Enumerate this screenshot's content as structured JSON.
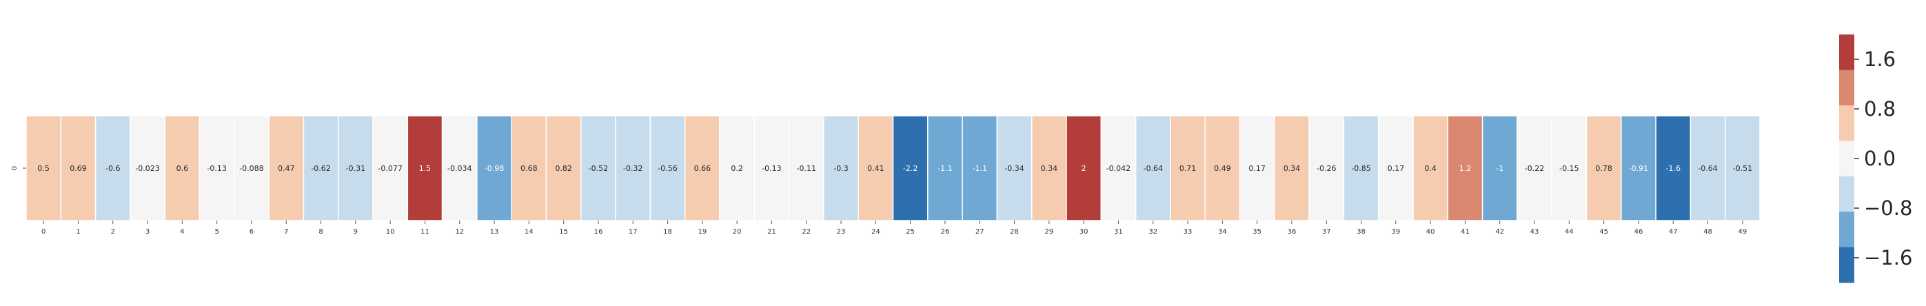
{
  "chart_data": {
    "type": "heatmap",
    "rows": [
      "0"
    ],
    "columns": [
      "0",
      "1",
      "2",
      "3",
      "4",
      "5",
      "6",
      "7",
      "8",
      "9",
      "10",
      "11",
      "12",
      "13",
      "14",
      "15",
      "16",
      "17",
      "18",
      "19",
      "20",
      "21",
      "22",
      "23",
      "24",
      "25",
      "26",
      "27",
      "28",
      "29",
      "30",
      "31",
      "32",
      "33",
      "34",
      "35",
      "36",
      "37",
      "38",
      "39",
      "40",
      "41",
      "42",
      "43",
      "44",
      "45",
      "46",
      "47",
      "48",
      "49"
    ],
    "values": [
      [
        0.5,
        0.69,
        -0.6,
        -0.023,
        0.6,
        -0.13,
        -0.088,
        0.47,
        -0.62,
        -0.31,
        -0.077,
        1.5,
        -0.034,
        -0.98,
        0.68,
        0.82,
        -0.52,
        -0.32,
        -0.56,
        0.66,
        0.2,
        -0.13,
        -0.11,
        -0.3,
        0.41,
        -2.2,
        -1.1,
        -1.1,
        -0.34,
        0.34,
        2,
        -0.042,
        -0.64,
        0.71,
        0.49,
        0.17,
        0.34,
        -0.26,
        -0.85,
        0.17,
        0.4,
        1.2,
        -1,
        -0.22,
        -0.15,
        0.78,
        -0.91,
        -1.6,
        -0.64,
        -0.51
      ]
    ],
    "annotations": [
      "0.5",
      "0.69",
      "-0.6",
      "-0.023",
      "0.6",
      "-0.13",
      "-0.088",
      "0.47",
      "-0.62",
      "-0.31",
      "-0.077",
      "1.5",
      "-0.034",
      "-0.98",
      "0.68",
      "0.82",
      "-0.52",
      "-0.32",
      "-0.56",
      "0.66",
      "0.2",
      "-0.13",
      "-0.11",
      "-0.3",
      "0.41",
      "-2.2",
      "-1.1",
      "-1.1",
      "-0.34",
      "0.34",
      "2",
      "-0.042",
      "-0.64",
      "0.71",
      "0.49",
      "0.17",
      "0.34",
      "-0.26",
      "-0.85",
      "0.17",
      "0.4",
      "1.2",
      "-1",
      "-0.22",
      "-0.15",
      "0.78",
      "-0.91",
      "-1.6",
      "-0.64",
      "-0.51"
    ],
    "colormap": "RdBu_r, 6 discrete levels",
    "colors": [
      "#2e6fb0",
      "#6fa8d3",
      "#c6dced",
      "#f5f5f5",
      "#f6ccb0",
      "#db8870",
      "#b23d3a"
    ],
    "vmin": -2.0,
    "vmax": 2.0,
    "colorbar": {
      "ticks": [
        1.6,
        0.8,
        0.0,
        -0.8,
        -1.6
      ],
      "tick_labels": [
        "1.6",
        "0.8",
        "0.0",
        "−0.8",
        "−1.6"
      ],
      "placement": "right"
    },
    "title": "",
    "xlabel": "",
    "ylabel": ""
  }
}
